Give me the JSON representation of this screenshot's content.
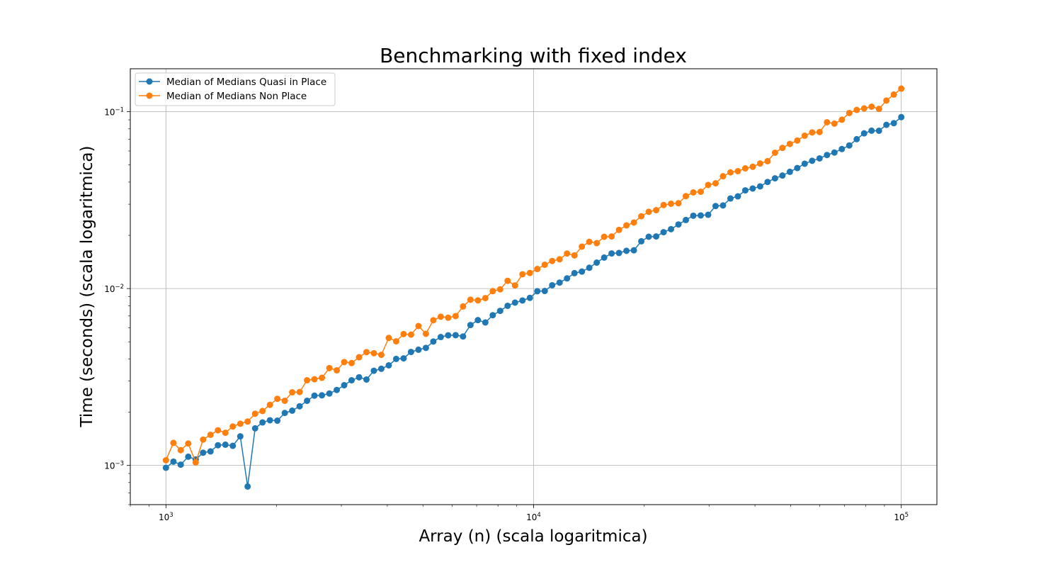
{
  "chart_data": {
    "type": "line",
    "title": "Benchmarking with fixed index",
    "xlabel": "Array (n) (scala logaritmica)",
    "ylabel": "Time (seconds) (scala logaritmica)",
    "x_scale": "log",
    "y_scale": "log",
    "xlim": [
      800,
      125000
    ],
    "ylim": [
      0.0006,
      0.175
    ],
    "grid": true,
    "legend_position": "top-left",
    "x_ticks": [
      {
        "value": 1000,
        "base": "10",
        "exp": "3"
      },
      {
        "value": 10000,
        "base": "10",
        "exp": "4"
      },
      {
        "value": 100000,
        "base": "10",
        "exp": "5"
      }
    ],
    "y_ticks": [
      {
        "value": 0.001,
        "base": "10",
        "exp": "−3"
      },
      {
        "value": 0.01,
        "base": "10",
        "exp": "−2"
      },
      {
        "value": 0.1,
        "base": "10",
        "exp": "−1"
      }
    ],
    "x": [
      1000,
      1048,
      1097,
      1150,
      1205,
      1262,
      1322,
      1385,
      1451,
      1520,
      1593,
      1668,
      1748,
      1831,
      1918,
      2009,
      2105,
      2205,
      2310,
      2420,
      2535,
      2656,
      2783,
      2915,
      3054,
      3199,
      3352,
      3511,
      3678,
      3853,
      4037,
      4229,
      4430,
      4641,
      4863,
      5094,
      5337,
      5591,
      5857,
      6136,
      6428,
      6734,
      7055,
      7391,
      7743,
      8111,
      8498,
      8902,
      9326,
      9770,
      10235,
      10723,
      11233,
      11768,
      12328,
      12915,
      13530,
      14174,
      14849,
      15556,
      16297,
      17073,
      17886,
      18738,
      19630,
      20565,
      21544,
      22570,
      23645,
      24771,
      25950,
      27186,
      28480,
      29836,
      31257,
      32745,
      34305,
      35938,
      37649,
      39442,
      41320,
      43288,
      45349,
      47508,
      49770,
      52140,
      54623,
      57224,
      59948,
      62803,
      65793,
      68926,
      72208,
      75646,
      79248,
      83022,
      86975,
      91116,
      95455,
      100000
    ],
    "series": [
      {
        "name": "Median of Medians Quasi in Place",
        "color": "#1f77b4",
        "values": [
          0.00097,
          0.00105,
          0.00101,
          0.00112,
          0.00108,
          0.00118,
          0.0012,
          0.0013,
          0.00131,
          0.00129,
          0.00146,
          0.00076,
          0.00162,
          0.00175,
          0.0018,
          0.00179,
          0.00198,
          0.00204,
          0.00216,
          0.00232,
          0.00248,
          0.00249,
          0.00255,
          0.00267,
          0.00284,
          0.00303,
          0.00315,
          0.00306,
          0.00343,
          0.00352,
          0.00368,
          0.004,
          0.00403,
          0.00438,
          0.00451,
          0.00462,
          0.00502,
          0.00532,
          0.00544,
          0.00545,
          0.00536,
          0.00622,
          0.00663,
          0.00643,
          0.00707,
          0.00748,
          0.00799,
          0.00833,
          0.00856,
          0.00886,
          0.00966,
          0.00969,
          0.01044,
          0.01081,
          0.01142,
          0.01222,
          0.01248,
          0.01311,
          0.01402,
          0.01497,
          0.0158,
          0.0159,
          0.01635,
          0.01646,
          0.01851,
          0.01964,
          0.01971,
          0.02084,
          0.02167,
          0.02304,
          0.02442,
          0.02582,
          0.02591,
          0.02614,
          0.02929,
          0.02951,
          0.03232,
          0.03323,
          0.03592,
          0.03679,
          0.03784,
          0.04007,
          0.04202,
          0.04358,
          0.04573,
          0.04804,
          0.05082,
          0.05281,
          0.05448,
          0.0569,
          0.05877,
          0.06151,
          0.06448,
          0.06994,
          0.07546,
          0.07814,
          0.07807,
          0.08432,
          0.08615,
          0.0932
        ]
      },
      {
        "name": "Median of Medians Non Place",
        "color": "#ff7f0e",
        "values": [
          0.00107,
          0.00134,
          0.00122,
          0.00133,
          0.00104,
          0.0014,
          0.00149,
          0.00158,
          0.00153,
          0.00166,
          0.00172,
          0.00177,
          0.00196,
          0.00203,
          0.0022,
          0.00238,
          0.00232,
          0.00259,
          0.0026,
          0.00303,
          0.00307,
          0.00313,
          0.00355,
          0.00345,
          0.00384,
          0.00379,
          0.00409,
          0.00437,
          0.00431,
          0.00422,
          0.00526,
          0.00503,
          0.00553,
          0.00549,
          0.00614,
          0.00555,
          0.00662,
          0.00693,
          0.00684,
          0.00699,
          0.00792,
          0.00865,
          0.00857,
          0.00883,
          0.00967,
          0.0099,
          0.01106,
          0.01042,
          0.01205,
          0.01225,
          0.0129,
          0.01364,
          0.01432,
          0.01464,
          0.01578,
          0.0154,
          0.01726,
          0.01838,
          0.01807,
          0.01962,
          0.01971,
          0.02147,
          0.02276,
          0.02363,
          0.02564,
          0.02717,
          0.02776,
          0.02967,
          0.03017,
          0.03037,
          0.03332,
          0.03497,
          0.03528,
          0.03853,
          0.03938,
          0.04318,
          0.04538,
          0.04611,
          0.04784,
          0.04883,
          0.05097,
          0.05253,
          0.05866,
          0.06246,
          0.06573,
          0.06872,
          0.07317,
          0.07639,
          0.07677,
          0.08719,
          0.08567,
          0.09011,
          0.09832,
          0.10234,
          0.10442,
          0.10681,
          0.10378,
          0.11569,
          0.12503,
          0.13512
        ]
      }
    ]
  }
}
